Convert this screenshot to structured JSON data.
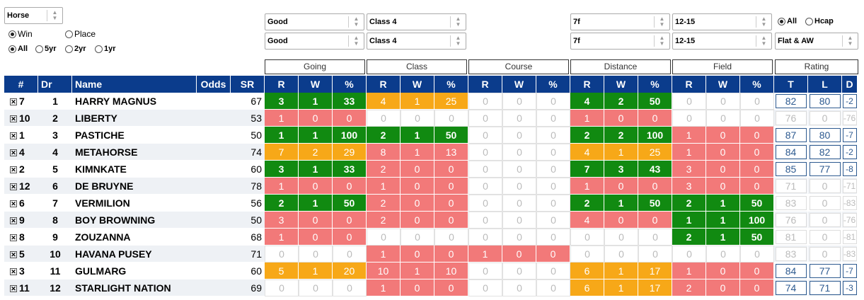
{
  "horse_select": "Horse",
  "bet_radio": [
    {
      "label": "Win",
      "checked": true
    },
    {
      "label": "Place",
      "checked": false
    }
  ],
  "period_radio": [
    {
      "label": "All",
      "checked": true
    },
    {
      "label": "5yr",
      "checked": false
    },
    {
      "label": "2yr",
      "checked": false
    },
    {
      "label": "1yr",
      "checked": false
    }
  ],
  "filters": {
    "going": [
      "Good",
      "Good"
    ],
    "class": [
      "Class 4",
      "Class 4"
    ],
    "distance": [
      "7f",
      "7f"
    ],
    "field": [
      "12-15",
      "12-15"
    ],
    "race_type": "Flat & AW"
  },
  "race_radio": [
    {
      "label": "All",
      "checked": true
    },
    {
      "label": "Hcap",
      "checked": false
    }
  ],
  "groups": [
    "Going",
    "Class",
    "Course",
    "Distance",
    "Field",
    "Rating"
  ],
  "headers": {
    "idx": "#",
    "dr": "Dr",
    "name": "Name",
    "odds": "Odds",
    "sr": "SR",
    "r": "R",
    "w": "W",
    "pct": "%",
    "t": "T",
    "l": "L",
    "d": "D"
  },
  "rows": [
    {
      "idx": "7",
      "dr": "1",
      "name": "HARRY MAGNUS",
      "sr": "67",
      "going": [
        "3",
        "1",
        "33"
      ],
      "going_c": "g",
      "class": [
        "4",
        "1",
        "25"
      ],
      "class_c": "o",
      "course": [
        "0",
        "0",
        "0"
      ],
      "course_c": "z",
      "dist": [
        "4",
        "2",
        "50"
      ],
      "dist_c": "g",
      "field": [
        "0",
        "0",
        "0"
      ],
      "field_c": "z",
      "t": "82",
      "l": "80",
      "d": "-2",
      "active": true
    },
    {
      "idx": "10",
      "dr": "2",
      "name": "LIBERTY",
      "sr": "53",
      "going": [
        "1",
        "0",
        "0"
      ],
      "going_c": "r",
      "class": [
        "0",
        "0",
        "0"
      ],
      "class_c": "z",
      "course": [
        "0",
        "0",
        "0"
      ],
      "course_c": "z",
      "dist": [
        "1",
        "0",
        "0"
      ],
      "dist_c": "r",
      "field": [
        "0",
        "0",
        "0"
      ],
      "field_c": "z",
      "t": "76",
      "l": "0",
      "d": "-76",
      "active": false
    },
    {
      "idx": "1",
      "dr": "3",
      "name": "PASTICHE",
      "sr": "50",
      "going": [
        "1",
        "1",
        "100"
      ],
      "going_c": "g",
      "class": [
        "2",
        "1",
        "50"
      ],
      "class_c": "g",
      "course": [
        "0",
        "0",
        "0"
      ],
      "course_c": "z",
      "dist": [
        "2",
        "2",
        "100"
      ],
      "dist_c": "g",
      "field": [
        "1",
        "0",
        "0"
      ],
      "field_c": "r",
      "t": "87",
      "l": "80",
      "d": "-7",
      "active": true
    },
    {
      "idx": "4",
      "dr": "4",
      "name": "METAHORSE",
      "sr": "74",
      "going": [
        "7",
        "2",
        "29"
      ],
      "going_c": "o",
      "class": [
        "8",
        "1",
        "13"
      ],
      "class_c": "r",
      "course": [
        "0",
        "0",
        "0"
      ],
      "course_c": "z",
      "dist": [
        "4",
        "1",
        "25"
      ],
      "dist_c": "o",
      "field": [
        "1",
        "0",
        "0"
      ],
      "field_c": "r",
      "t": "84",
      "l": "82",
      "d": "-2",
      "active": true
    },
    {
      "idx": "2",
      "dr": "5",
      "name": "KIMNKATE",
      "sr": "60",
      "going": [
        "3",
        "1",
        "33"
      ],
      "going_c": "g",
      "class": [
        "2",
        "0",
        "0"
      ],
      "class_c": "r",
      "course": [
        "0",
        "0",
        "0"
      ],
      "course_c": "z",
      "dist": [
        "7",
        "3",
        "43"
      ],
      "dist_c": "g",
      "field": [
        "3",
        "0",
        "0"
      ],
      "field_c": "r",
      "t": "85",
      "l": "77",
      "d": "-8",
      "active": true
    },
    {
      "idx": "12",
      "dr": "6",
      "name": "DE BRUYNE",
      "sr": "78",
      "going": [
        "1",
        "0",
        "0"
      ],
      "going_c": "r",
      "class": [
        "1",
        "0",
        "0"
      ],
      "class_c": "r",
      "course": [
        "0",
        "0",
        "0"
      ],
      "course_c": "z",
      "dist": [
        "1",
        "0",
        "0"
      ],
      "dist_c": "r",
      "field": [
        "3",
        "0",
        "0"
      ],
      "field_c": "r",
      "t": "71",
      "l": "0",
      "d": "-71",
      "active": false
    },
    {
      "idx": "6",
      "dr": "7",
      "name": "VERMILION",
      "sr": "56",
      "going": [
        "2",
        "1",
        "50"
      ],
      "going_c": "g",
      "class": [
        "2",
        "0",
        "0"
      ],
      "class_c": "r",
      "course": [
        "0",
        "0",
        "0"
      ],
      "course_c": "z",
      "dist": [
        "2",
        "1",
        "50"
      ],
      "dist_c": "g",
      "field": [
        "2",
        "1",
        "50"
      ],
      "field_c": "g",
      "t": "83",
      "l": "0",
      "d": "-83",
      "active": false
    },
    {
      "idx": "9",
      "dr": "8",
      "name": "BOY BROWNING",
      "sr": "50",
      "going": [
        "3",
        "0",
        "0"
      ],
      "going_c": "r",
      "class": [
        "2",
        "0",
        "0"
      ],
      "class_c": "r",
      "course": [
        "0",
        "0",
        "0"
      ],
      "course_c": "z",
      "dist": [
        "4",
        "0",
        "0"
      ],
      "dist_c": "r",
      "field": [
        "1",
        "1",
        "100"
      ],
      "field_c": "g",
      "t": "76",
      "l": "0",
      "d": "-76",
      "active": false
    },
    {
      "idx": "8",
      "dr": "9",
      "name": "ZOUZANNA",
      "sr": "68",
      "going": [
        "1",
        "0",
        "0"
      ],
      "going_c": "r",
      "class": [
        "0",
        "0",
        "0"
      ],
      "class_c": "z",
      "course": [
        "0",
        "0",
        "0"
      ],
      "course_c": "z",
      "dist": [
        "0",
        "0",
        "0"
      ],
      "dist_c": "z",
      "field": [
        "2",
        "1",
        "50"
      ],
      "field_c": "g",
      "t": "81",
      "l": "0",
      "d": "-81",
      "active": false
    },
    {
      "idx": "5",
      "dr": "10",
      "name": "HAVANA PUSEY",
      "sr": "71",
      "going": [
        "0",
        "0",
        "0"
      ],
      "going_c": "z",
      "class": [
        "1",
        "0",
        "0"
      ],
      "class_c": "r",
      "course": [
        "1",
        "0",
        "0"
      ],
      "course_c": "r",
      "dist": [
        "0",
        "0",
        "0"
      ],
      "dist_c": "z",
      "field": [
        "0",
        "0",
        "0"
      ],
      "field_c": "z",
      "t": "83",
      "l": "0",
      "d": "-83",
      "active": false
    },
    {
      "idx": "3",
      "dr": "11",
      "name": "GULMARG",
      "sr": "60",
      "going": [
        "5",
        "1",
        "20"
      ],
      "going_c": "o",
      "class": [
        "10",
        "1",
        "10"
      ],
      "class_c": "r",
      "course": [
        "0",
        "0",
        "0"
      ],
      "course_c": "z",
      "dist": [
        "6",
        "1",
        "17"
      ],
      "dist_c": "o",
      "field": [
        "1",
        "0",
        "0"
      ],
      "field_c": "r",
      "t": "84",
      "l": "77",
      "d": "-7",
      "active": true
    },
    {
      "idx": "11",
      "dr": "12",
      "name": "STARLIGHT NATION",
      "sr": "69",
      "going": [
        "0",
        "0",
        "0"
      ],
      "going_c": "z",
      "class": [
        "1",
        "0",
        "0"
      ],
      "class_c": "r",
      "course": [
        "0",
        "0",
        "0"
      ],
      "course_c": "z",
      "dist": [
        "6",
        "1",
        "17"
      ],
      "dist_c": "o",
      "field": [
        "2",
        "0",
        "0"
      ],
      "field_c": "r",
      "t": "74",
      "l": "71",
      "d": "-3",
      "active": true
    }
  ]
}
